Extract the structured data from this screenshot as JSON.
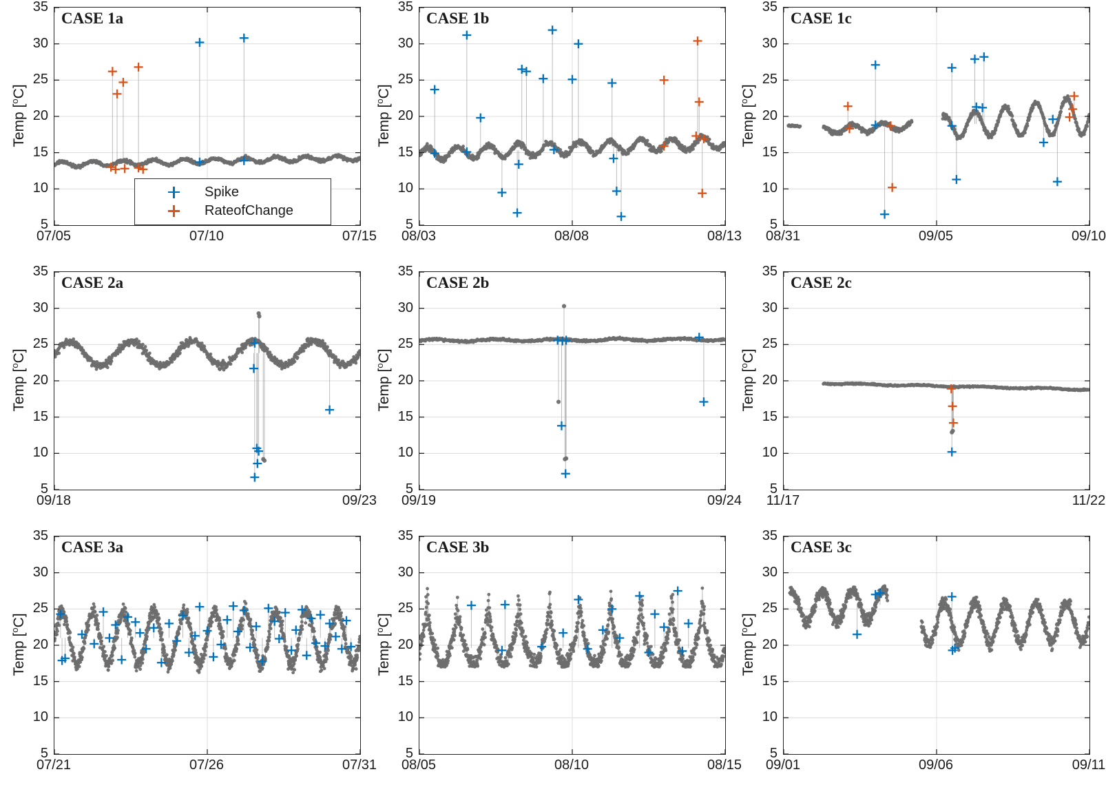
{
  "colors": {
    "spike": "#0072BD",
    "rate_of_change": "#D95319",
    "series": "#6e6e6e",
    "grid": "#dcdcdc",
    "axis": "#222222"
  },
  "axes": {
    "ylabel_pre": "Temp [",
    "ylabel_sup": "o",
    "ylabel_post": "C]",
    "ylim": [
      5,
      35
    ],
    "yticks": [
      "35",
      "30",
      "25",
      "20",
      "15",
      "10",
      "5"
    ]
  },
  "legend": {
    "items": [
      {
        "label": "Spike",
        "color_key": "spike"
      },
      {
        "label": "RateofChange",
        "color_key": "rate_of_change"
      }
    ]
  },
  "chart_data": [
    {
      "type": "scatter",
      "title": "CASE 1a",
      "ylabel": "Temp [oC]",
      "ylim": [
        5,
        35
      ],
      "show_legend": true,
      "x_ticks": [
        {
          "pos": 0,
          "label": "07/05"
        },
        {
          "pos": 0.5,
          "label": "07/10"
        },
        {
          "pos": 1,
          "label": "07/15"
        }
      ],
      "segments": [
        {
          "x0": 0,
          "x1": 1,
          "n": 780,
          "base": 13.35,
          "trend": 0.95,
          "amp": 0.35,
          "noise": 0.22,
          "freq": 10
        }
      ],
      "spike_points": [
        [
          0.475,
          30.2
        ],
        [
          0.62,
          30.8
        ],
        [
          0.475,
          13.7
        ],
        [
          0.62,
          13.9
        ]
      ],
      "roc_points": [
        [
          0.19,
          26.2
        ],
        [
          0.205,
          23.1
        ],
        [
          0.225,
          24.7
        ],
        [
          0.275,
          26.8
        ],
        [
          0.185,
          13.0
        ],
        [
          0.2,
          12.7
        ],
        [
          0.23,
          12.8
        ],
        [
          0.275,
          12.9
        ],
        [
          0.29,
          12.7
        ]
      ],
      "gray_outliers": []
    },
    {
      "type": "scatter",
      "title": "CASE 1b",
      "ylabel": "Temp [oC]",
      "ylim": [
        5,
        35
      ],
      "show_legend": false,
      "x_ticks": [
        {
          "pos": 0,
          "label": "08/03"
        },
        {
          "pos": 0.5,
          "label": "08/08"
        },
        {
          "pos": 1,
          "label": "08/13"
        }
      ],
      "segments": [
        {
          "x0": 0,
          "x1": 1,
          "n": 900,
          "base": 14.8,
          "trend": 1.6,
          "amp": 0.85,
          "noise": 0.4,
          "freq": 10
        }
      ],
      "spike_points": [
        [
          0.05,
          23.7
        ],
        [
          0.05,
          14.9
        ],
        [
          0.155,
          31.2
        ],
        [
          0.155,
          15.1
        ],
        [
          0.2,
          19.8
        ],
        [
          0.27,
          9.5
        ],
        [
          0.32,
          6.7
        ],
        [
          0.325,
          13.4
        ],
        [
          0.335,
          26.5
        ],
        [
          0.35,
          26.2
        ],
        [
          0.405,
          25.2
        ],
        [
          0.435,
          31.9
        ],
        [
          0.44,
          15.4
        ],
        [
          0.5,
          25.1
        ],
        [
          0.52,
          30.0
        ],
        [
          0.63,
          24.6
        ],
        [
          0.635,
          14.2
        ],
        [
          0.645,
          9.7
        ],
        [
          0.66,
          6.2
        ]
      ],
      "roc_points": [
        [
          0.8,
          25.0
        ],
        [
          0.8,
          15.9
        ],
        [
          0.91,
          30.4
        ],
        [
          0.915,
          22.0
        ],
        [
          0.905,
          17.3
        ],
        [
          0.925,
          9.4
        ],
        [
          0.93,
          16.9
        ]
      ],
      "gray_outliers": []
    },
    {
      "type": "scatter",
      "title": "CASE 1c",
      "ylabel": "Temp [oC]",
      "ylim": [
        5,
        35
      ],
      "show_legend": false,
      "x_ticks": [
        {
          "pos": 0,
          "label": "08/31"
        },
        {
          "pos": 0.5,
          "label": "09/05"
        },
        {
          "pos": 1,
          "label": "09/10"
        }
      ],
      "segments": [
        {
          "x0": 0.015,
          "x1": 0.055,
          "n": 45,
          "base": 18.6,
          "trend": 0,
          "amp": 0.12,
          "noise": 0.12,
          "freq": 10
        },
        {
          "x0": 0.13,
          "x1": 0.42,
          "n": 330,
          "base": 18.1,
          "trend": 0.6,
          "amp": 0.55,
          "noise": 0.28,
          "freq": 10
        },
        {
          "x0": 0.52,
          "x1": 1.0,
          "n": 540,
          "base": 18.6,
          "trend": 1.6,
          "amp": 1.5,
          "noise": 0.35,
          "freq": 10,
          "ampTrend": 0.8,
          "clampMax": 23.3
        }
      ],
      "spike_points": [
        [
          0.3,
          27.1
        ],
        [
          0.3,
          18.8
        ],
        [
          0.33,
          6.5
        ],
        [
          0.55,
          26.7
        ],
        [
          0.55,
          18.7
        ],
        [
          0.565,
          11.3
        ],
        [
          0.625,
          27.9
        ],
        [
          0.63,
          21.3
        ],
        [
          0.655,
          28.2
        ],
        [
          0.65,
          21.2
        ],
        [
          0.85,
          16.4
        ],
        [
          0.88,
          19.6
        ],
        [
          0.895,
          11.0
        ]
      ],
      "roc_points": [
        [
          0.21,
          21.4
        ],
        [
          0.215,
          18.3
        ],
        [
          0.35,
          18.7
        ],
        [
          0.355,
          10.2
        ],
        [
          0.935,
          19.9
        ],
        [
          0.95,
          22.8
        ],
        [
          0.945,
          21.0
        ]
      ],
      "gray_outliers": []
    },
    {
      "type": "scatter",
      "title": "CASE 2a",
      "ylabel": "Temp [oC]",
      "ylim": [
        5,
        35
      ],
      "show_legend": false,
      "x_ticks": [
        {
          "pos": 0,
          "label": "09/18"
        },
        {
          "pos": 1,
          "label": "09/23"
        }
      ],
      "segments": [
        {
          "x0": 0,
          "x1": 1,
          "n": 850,
          "base": 23.7,
          "trend": 0.2,
          "amp": 1.7,
          "noise": 0.55,
          "freq": 5,
          "clampMax": 26.2
        }
      ],
      "spike_points": [
        [
          0.655,
          25.2
        ],
        [
          0.652,
          21.7
        ],
        [
          0.662,
          10.7
        ],
        [
          0.668,
          10.3
        ],
        [
          0.664,
          8.6
        ],
        [
          0.655,
          6.7
        ],
        [
          0.9,
          16.0
        ]
      ],
      "roc_points": [],
      "gray_outliers": [
        [
          0.668,
          29.3
        ],
        [
          0.67,
          28.9
        ],
        [
          0.683,
          9.2
        ],
        [
          0.687,
          9.0
        ]
      ]
    },
    {
      "type": "scatter",
      "title": "CASE 2b",
      "ylabel": "Temp [oC]",
      "ylim": [
        5,
        35
      ],
      "show_legend": false,
      "x_ticks": [
        {
          "pos": 0,
          "label": "09/19"
        },
        {
          "pos": 1,
          "label": "09/24"
        }
      ],
      "segments": [
        {
          "x0": 0,
          "x1": 1,
          "n": 760,
          "base": 25.55,
          "trend": 0.15,
          "amp": 0.15,
          "noise": 0.15,
          "freq": 5
        }
      ],
      "spike_points": [
        [
          0.452,
          25.6
        ],
        [
          0.468,
          25.5
        ],
        [
          0.48,
          25.6
        ],
        [
          0.465,
          13.8
        ],
        [
          0.478,
          7.2
        ],
        [
          0.915,
          26.0
        ],
        [
          0.93,
          17.1
        ]
      ],
      "roc_points": [],
      "gray_outliers": [
        [
          0.473,
          30.3
        ],
        [
          0.455,
          17.1
        ],
        [
          0.476,
          9.2
        ],
        [
          0.48,
          9.3
        ]
      ]
    },
    {
      "type": "scatter",
      "title": "CASE 2c",
      "ylabel": "Temp [oC]",
      "ylim": [
        5,
        35
      ],
      "show_legend": false,
      "x_ticks": [
        {
          "pos": 0,
          "label": "11/17"
        },
        {
          "pos": 1,
          "label": "11/22"
        }
      ],
      "segments": [
        {
          "x0": 0.13,
          "x1": 1,
          "n": 600,
          "base": 19.65,
          "trend": -0.85,
          "amp": 0.07,
          "noise": 0.1,
          "freq": 5
        }
      ],
      "spike_points": [
        [
          0.55,
          10.2
        ]
      ],
      "roc_points": [
        [
          0.548,
          18.9
        ],
        [
          0.552,
          16.5
        ],
        [
          0.555,
          14.2
        ]
      ],
      "gray_outliers": [
        [
          0.553,
          13.1
        ],
        [
          0.55,
          12.9
        ]
      ]
    },
    {
      "type": "scatter",
      "title": "CASE 3a",
      "ylabel": "Temp [oC]",
      "ylim": [
        5,
        35
      ],
      "show_legend": false,
      "x_ticks": [
        {
          "pos": 0,
          "label": "07/21"
        },
        {
          "pos": 0.5,
          "label": "07/26"
        },
        {
          "pos": 1,
          "label": "07/31"
        }
      ],
      "segments": [
        {
          "x0": 0,
          "x1": 1,
          "n": 1300,
          "base": 21.0,
          "trend": 0,
          "amp": 3.6,
          "noise": 1.1,
          "freq": 10,
          "clampMin": 16.2
        }
      ],
      "spike_points": [
        [
          0.02,
          24.3
        ],
        [
          0.025,
          17.9
        ],
        [
          0.035,
          18.2
        ],
        [
          0.09,
          21.5
        ],
        [
          0.13,
          20.2
        ],
        [
          0.16,
          24.6
        ],
        [
          0.18,
          21.0
        ],
        [
          0.2,
          22.8
        ],
        [
          0.22,
          18.0
        ],
        [
          0.24,
          23.9
        ],
        [
          0.265,
          23.2
        ],
        [
          0.28,
          21.7
        ],
        [
          0.3,
          19.5
        ],
        [
          0.325,
          22.4
        ],
        [
          0.35,
          17.6
        ],
        [
          0.375,
          23.0
        ],
        [
          0.4,
          20.6
        ],
        [
          0.42,
          24.1
        ],
        [
          0.44,
          19.0
        ],
        [
          0.46,
          21.3
        ],
        [
          0.475,
          25.3
        ],
        [
          0.5,
          22.0
        ],
        [
          0.52,
          18.4
        ],
        [
          0.545,
          20.1
        ],
        [
          0.565,
          23.5
        ],
        [
          0.585,
          25.4
        ],
        [
          0.6,
          21.9
        ],
        [
          0.62,
          24.8
        ],
        [
          0.64,
          19.7
        ],
        [
          0.66,
          22.6
        ],
        [
          0.68,
          17.8
        ],
        [
          0.7,
          25.1
        ],
        [
          0.72,
          23.3
        ],
        [
          0.735,
          20.9
        ],
        [
          0.755,
          24.5
        ],
        [
          0.775,
          19.3
        ],
        [
          0.79,
          22.1
        ],
        [
          0.81,
          24.9
        ],
        [
          0.825,
          18.6
        ],
        [
          0.84,
          23.7
        ],
        [
          0.855,
          20.3
        ],
        [
          0.87,
          24.2
        ],
        [
          0.885,
          19.9
        ],
        [
          0.9,
          23.0
        ],
        [
          0.92,
          21.2
        ],
        [
          0.94,
          19.5
        ],
        [
          0.955,
          23.4
        ],
        [
          0.97,
          19.8
        ]
      ],
      "roc_points": [],
      "gray_outliers": []
    },
    {
      "type": "scatter",
      "title": "CASE 3b",
      "ylabel": "Temp [oC]",
      "ylim": [
        5,
        35
      ],
      "show_legend": false,
      "x_ticks": [
        {
          "pos": 0,
          "label": "08/05"
        },
        {
          "pos": 0.5,
          "label": "08/10"
        },
        {
          "pos": 1,
          "label": "08/15"
        }
      ],
      "segments": [
        {
          "x0": 0,
          "x1": 1,
          "n": 1300,
          "base": 19.6,
          "trend": 0,
          "amp": 2.4,
          "noise": 1.2,
          "freq": 10,
          "clampMin": 17.0,
          "clampMax": 29.0,
          "peak": 5.0
        }
      ],
      "spike_points": [
        [
          0.17,
          25.5
        ],
        [
          0.27,
          19.3
        ],
        [
          0.28,
          25.6
        ],
        [
          0.4,
          19.8
        ],
        [
          0.47,
          21.7
        ],
        [
          0.52,
          26.3
        ],
        [
          0.55,
          19.5
        ],
        [
          0.6,
          22.1
        ],
        [
          0.63,
          25.0
        ],
        [
          0.655,
          21.0
        ],
        [
          0.72,
          26.8
        ],
        [
          0.75,
          19.0
        ],
        [
          0.77,
          24.3
        ],
        [
          0.8,
          22.5
        ],
        [
          0.845,
          27.5
        ],
        [
          0.86,
          19.2
        ],
        [
          0.88,
          23.0
        ]
      ],
      "roc_points": [],
      "gray_outliers": []
    },
    {
      "type": "scatter",
      "title": "CASE 3c",
      "ylabel": "Temp [oC]",
      "ylim": [
        5,
        35
      ],
      "show_legend": false,
      "x_ticks": [
        {
          "pos": 0,
          "label": "09/01"
        },
        {
          "pos": 0.5,
          "label": "09/06"
        },
        {
          "pos": 1,
          "label": "09/11"
        }
      ],
      "segments": [
        {
          "x0": 0.02,
          "x1": 0.34,
          "n": 430,
          "base": 25.2,
          "trend": 0.4,
          "amp": 2.2,
          "noise": 0.9,
          "freq": 10,
          "clampMax": 28.2
        },
        {
          "x0": 0.45,
          "x1": 1.0,
          "n": 660,
          "base": 23.0,
          "trend": 0.3,
          "amp": 2.8,
          "noise": 0.9,
          "freq": 10,
          "clampMax": 27.5
        }
      ],
      "spike_points": [
        [
          0.24,
          21.5
        ],
        [
          0.3,
          27.0
        ],
        [
          0.315,
          27.2
        ],
        [
          0.55,
          26.7
        ],
        [
          0.552,
          19.3
        ],
        [
          0.56,
          19.6
        ]
      ],
      "roc_points": [],
      "gray_outliers": []
    }
  ]
}
